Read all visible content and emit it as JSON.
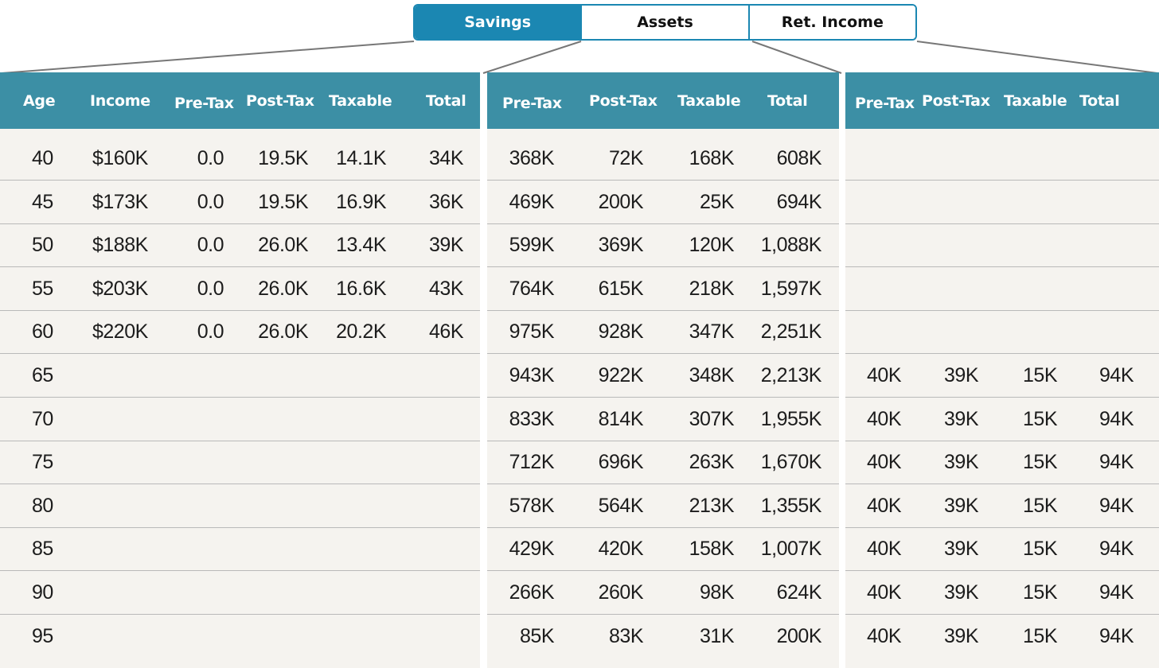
{
  "tabs": [
    {
      "label": "Savings",
      "active": true
    },
    {
      "label": "Assets",
      "active": false
    },
    {
      "label": "Ret. Income",
      "active": false
    }
  ],
  "colors": {
    "accent": "#1b87b2",
    "header_bg": "#3c8fa5",
    "table_bg": "#f5f3ef",
    "row_divider": "#b9b9b9"
  },
  "savings": {
    "headers": [
      "Age",
      "Income",
      "Pre-Tax",
      "Post-Tax",
      "Taxable",
      "Total"
    ],
    "rows": [
      [
        "40",
        "$160K",
        "0.0",
        "19.5K",
        "14.1K",
        "34K"
      ],
      [
        "45",
        "$173K",
        "0.0",
        "19.5K",
        "16.9K",
        "36K"
      ],
      [
        "50",
        "$188K",
        "0.0",
        "26.0K",
        "13.4K",
        "39K"
      ],
      [
        "55",
        "$203K",
        "0.0",
        "26.0K",
        "16.6K",
        "43K"
      ],
      [
        "60",
        "$220K",
        "0.0",
        "26.0K",
        "20.2K",
        "46K"
      ],
      [
        "65",
        "",
        "",
        "",
        "",
        ""
      ],
      [
        "70",
        "",
        "",
        "",
        "",
        ""
      ],
      [
        "75",
        "",
        "",
        "",
        "",
        ""
      ],
      [
        "80",
        "",
        "",
        "",
        "",
        ""
      ],
      [
        "85",
        "",
        "",
        "",
        "",
        ""
      ],
      [
        "90",
        "",
        "",
        "",
        "",
        ""
      ],
      [
        "95",
        "",
        "",
        "",
        "",
        ""
      ]
    ]
  },
  "assets": {
    "headers": [
      "Pre-Tax",
      "Post-Tax",
      "Taxable",
      "Total"
    ],
    "rows": [
      [
        "368K",
        "72K",
        "168K",
        "608K"
      ],
      [
        "469K",
        "200K",
        "25K",
        "694K"
      ],
      [
        "599K",
        "369K",
        "120K",
        "1,088K"
      ],
      [
        "764K",
        "615K",
        "218K",
        "1,597K"
      ],
      [
        "975K",
        "928K",
        "347K",
        "2,251K"
      ],
      [
        "943K",
        "922K",
        "348K",
        "2,213K"
      ],
      [
        "833K",
        "814K",
        "307K",
        "1,955K"
      ],
      [
        "712K",
        "696K",
        "263K",
        "1,670K"
      ],
      [
        "578K",
        "564K",
        "213K",
        "1,355K"
      ],
      [
        "429K",
        "420K",
        "158K",
        "1,007K"
      ],
      [
        "266K",
        "260K",
        "98K",
        "624K"
      ],
      [
        "85K",
        "83K",
        "31K",
        "200K"
      ]
    ]
  },
  "ret_income": {
    "headers": [
      "Pre-Tax",
      "Post-Tax",
      "Taxable",
      "Total"
    ],
    "rows": [
      [
        "",
        "",
        "",
        ""
      ],
      [
        "",
        "",
        "",
        ""
      ],
      [
        "",
        "",
        "",
        ""
      ],
      [
        "",
        "",
        "",
        ""
      ],
      [
        "",
        "",
        "",
        ""
      ],
      [
        "40K",
        "39K",
        "15K",
        "94K"
      ],
      [
        "40K",
        "39K",
        "15K",
        "94K"
      ],
      [
        "40K",
        "39K",
        "15K",
        "94K"
      ],
      [
        "40K",
        "39K",
        "15K",
        "94K"
      ],
      [
        "40K",
        "39K",
        "15K",
        "94K"
      ],
      [
        "40K",
        "39K",
        "15K",
        "94K"
      ],
      [
        "40K",
        "39K",
        "15K",
        "94K"
      ]
    ]
  }
}
